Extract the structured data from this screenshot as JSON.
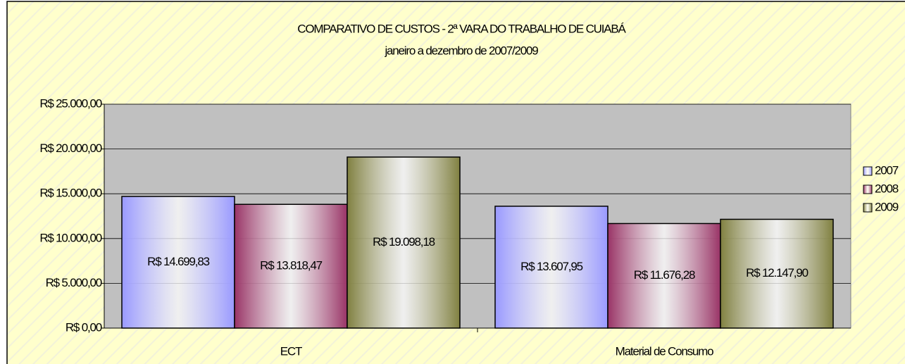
{
  "chart_data": {
    "type": "bar",
    "title": "COMPARATIVO DE CUSTOS - 2ª VARA DO TRABALHO DE CUIABÁ",
    "subtitle": "janeiro a dezembro de 2007/2009",
    "categories": [
      "ECT",
      "Material de Consumo"
    ],
    "series": [
      {
        "name": "2007",
        "color": "#9999ff",
        "values": [
          14699.83,
          13607.95
        ],
        "value_labels": [
          "R$ 14.699,83",
          "R$ 13.607,95"
        ]
      },
      {
        "name": "2008",
        "color": "#993366",
        "values": [
          13818.47,
          11676.28
        ],
        "value_labels": [
          "R$ 13.818,47",
          "R$ 11.676,28"
        ]
      },
      {
        "name": "2009",
        "color": "#808040",
        "values": [
          19098.18,
          12147.9
        ],
        "value_labels": [
          "R$ 19.098,18",
          "R$ 12.147,90"
        ]
      }
    ],
    "ylim": [
      0,
      25000
    ],
    "yticks": [
      {
        "value": 0,
        "label": "R$ 0,00"
      },
      {
        "value": 5000,
        "label": "R$ 5.000,00"
      },
      {
        "value": 10000,
        "label": "R$ 10.000,00"
      },
      {
        "value": 15000,
        "label": "R$ 15.000,00"
      },
      {
        "value": 20000,
        "label": "R$ 20.000,00"
      },
      {
        "value": 25000,
        "label": "R$ 25.000,00"
      }
    ],
    "grid": true,
    "legend": "right"
  }
}
